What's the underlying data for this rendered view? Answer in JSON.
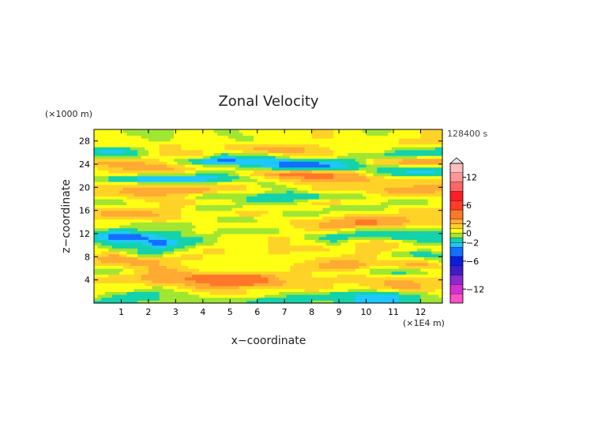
{
  "chart_data": {
    "type": "heatmap",
    "title": "Zonal Velocity",
    "xlabel": "x−coordinate",
    "ylabel": "z−coordinate",
    "x_unit": "(×1E4 m)",
    "y_unit": "(×1000 m)",
    "time_label": "128400 s",
    "xlim": [
      0,
      12.8
    ],
    "ylim": [
      0,
      30
    ],
    "x_ticks": [
      "1",
      "2",
      "3",
      "4",
      "5",
      "6",
      "7",
      "8",
      "9",
      "10",
      "11",
      "12"
    ],
    "y_ticks": [
      "4",
      "8",
      "12",
      "16",
      "20",
      "24",
      "28"
    ],
    "colorbar": {
      "range": [
        -15,
        15
      ],
      "ticks": [
        "12",
        "6",
        "2",
        "0",
        "−2",
        "−6",
        "−12"
      ],
      "levels": [
        {
          "min": -15,
          "max": -13,
          "color": "#ff50c8"
        },
        {
          "min": -13,
          "max": -11,
          "color": "#d230d2"
        },
        {
          "min": -11,
          "max": -9,
          "color": "#8c28d2"
        },
        {
          "min": -9,
          "max": -7,
          "color": "#3c1ec8"
        },
        {
          "min": -7,
          "max": -5,
          "color": "#0a1edc"
        },
        {
          "min": -5,
          "max": -3,
          "color": "#146eff"
        },
        {
          "min": -3,
          "max": -2,
          "color": "#1ec8ff"
        },
        {
          "min": -2,
          "max": -1,
          "color": "#14d2aa"
        },
        {
          "min": -1,
          "max": 0,
          "color": "#a0e632"
        },
        {
          "min": 0,
          "max": 1,
          "color": "#ffff14"
        },
        {
          "min": 1,
          "max": 2,
          "color": "#ffd228"
        },
        {
          "min": 2,
          "max": 3,
          "color": "#ffaa32"
        },
        {
          "min": 3,
          "max": 5,
          "color": "#ff7828"
        },
        {
          "min": 5,
          "max": 7,
          "color": "#ff3c28"
        },
        {
          "min": 7,
          "max": 9,
          "color": "#ff1e28"
        },
        {
          "min": 9,
          "max": 11,
          "color": "#ff6464"
        },
        {
          "min": 11,
          "max": 13,
          "color": "#ff9696"
        },
        {
          "min": 13,
          "max": 15,
          "color": "#ffbebe"
        }
      ]
    },
    "z_rows": [
      0.5,
      1.5,
      2.5,
      3.5,
      4.5,
      5.5,
      6.5,
      7.5,
      8.5,
      9.5,
      10.5,
      11.5,
      12.5,
      13.5,
      14.5,
      15.5,
      16.5,
      17.5,
      18.5,
      19.5,
      20.5,
      21.5,
      22.5,
      23.5,
      24.5,
      25.5,
      26.5,
      27.5,
      28.5,
      29.5
    ],
    "x_cols": [
      0,
      0.8,
      1.6,
      2.4,
      3.2,
      4.0,
      4.8,
      5.6,
      6.4,
      7.2,
      8.0,
      8.8,
      9.6,
      10.4,
      11.2,
      12.0,
      12.8
    ],
    "values": [
      [
        -1,
        -2,
        -1,
        -1,
        -0.5,
        -1,
        -1,
        -1,
        -2,
        -2,
        -1,
        -1,
        -2,
        -3,
        -2,
        -1,
        -1
      ],
      [
        0.5,
        -1,
        -2,
        -1,
        -1,
        0.5,
        1,
        1,
        0.5,
        -1,
        -1,
        -2,
        -2,
        -3,
        -2,
        -1,
        0.5
      ],
      [
        0.5,
        1,
        0.5,
        -1,
        1,
        2,
        2,
        1,
        1,
        1,
        2,
        1,
        0.5,
        1,
        2,
        2,
        1
      ],
      [
        1,
        1,
        1,
        2,
        2,
        3,
        4,
        4,
        3,
        2,
        1,
        1,
        1,
        2,
        3,
        2,
        1
      ],
      [
        1,
        2,
        2,
        3,
        3,
        4,
        5,
        5,
        3,
        1,
        1,
        1,
        2,
        1,
        1,
        1,
        1
      ],
      [
        -1,
        -1,
        1,
        3,
        2,
        1,
        1,
        0.5,
        0.5,
        1,
        1,
        0.5,
        0.5,
        -1,
        -2,
        -1,
        1
      ],
      [
        1,
        1,
        2,
        2,
        1,
        0.5,
        0.5,
        1,
        1,
        1,
        2,
        3,
        3,
        1,
        2,
        3,
        1
      ],
      [
        2,
        3,
        3,
        2,
        1,
        1,
        0.5,
        1,
        0.5,
        0.5,
        1,
        2,
        2,
        1,
        1,
        1,
        -1
      ],
      [
        1,
        2,
        -1,
        -1,
        1,
        1,
        1,
        0.5,
        1,
        1,
        0.5,
        0.5,
        1,
        1,
        -1,
        -2,
        -1
      ],
      [
        0.5,
        -1,
        -1,
        -2,
        -1,
        1,
        1,
        0.5,
        1,
        1,
        2,
        1,
        1,
        2,
        1,
        0.5,
        0.5
      ],
      [
        -1,
        -2,
        -2,
        -4,
        -2,
        -1,
        0.5,
        1,
        1,
        1,
        0.5,
        -1,
        1,
        2,
        1,
        -1,
        -1
      ],
      [
        -2,
        -4,
        -4,
        -2,
        -1,
        -1,
        0.5,
        0.5,
        1,
        1,
        -1,
        -2,
        -1,
        -1,
        -2,
        -2,
        -1
      ],
      [
        -1,
        -2,
        -1,
        -1,
        -1,
        1,
        -1,
        -1,
        -1,
        0.5,
        1,
        1,
        -1,
        -2,
        -1,
        -1,
        -1
      ],
      [
        0.5,
        1,
        -1,
        -1,
        -1,
        0.5,
        1,
        1,
        1,
        1,
        2,
        3,
        3,
        3,
        2,
        1,
        1
      ],
      [
        1,
        1,
        1,
        2,
        1,
        1,
        -1,
        -1,
        0.5,
        1,
        1,
        2,
        3,
        3,
        3,
        1,
        1
      ],
      [
        2,
        3,
        3,
        2,
        1,
        0.5,
        1,
        2,
        1,
        -1,
        -1,
        0.5,
        0.5,
        1,
        1,
        1,
        1
      ],
      [
        1,
        1,
        1,
        1,
        1,
        -1,
        -1,
        0.5,
        1,
        1,
        1,
        -1,
        -1,
        -1,
        1,
        1,
        1
      ],
      [
        -1,
        -1,
        0.5,
        1,
        2,
        1,
        1,
        -1,
        -1,
        -1,
        1,
        2,
        1,
        0.5,
        -1,
        -1,
        1
      ],
      [
        1,
        1,
        2,
        2,
        1,
        -1,
        -1,
        -1,
        -2,
        -2,
        -2,
        -1,
        -1,
        0.5,
        1,
        1,
        1
      ],
      [
        2,
        2,
        3,
        3,
        3,
        3,
        1,
        1,
        0.5,
        -1,
        1,
        1,
        1,
        2,
        3,
        3,
        2
      ],
      [
        1,
        1,
        1,
        1,
        1,
        0.5,
        1,
        1,
        -1,
        0.5,
        1,
        1,
        1,
        1,
        1,
        2,
        2
      ],
      [
        -1,
        -2,
        -3,
        -4,
        -4,
        -3,
        -2,
        -1,
        1,
        2,
        3,
        3,
        3,
        2,
        1,
        1,
        1
      ],
      [
        0.5,
        1,
        1,
        1,
        1,
        -1,
        -1,
        1,
        3,
        4,
        4,
        3,
        2,
        -1,
        -2,
        -3,
        -2
      ],
      [
        1,
        2,
        3,
        3,
        2,
        1,
        1,
        -1,
        -2,
        -4,
        -4,
        -3,
        -2,
        -1,
        -1,
        -1,
        -1
      ],
      [
        2,
        3,
        2,
        1,
        -1,
        -3,
        -4,
        -3,
        -3,
        -3,
        -3,
        -2,
        -1,
        2,
        3,
        4,
        3
      ],
      [
        -1,
        -1,
        -1,
        1,
        1,
        1,
        -2,
        -1,
        -1,
        1,
        1,
        1,
        -1,
        -1,
        -2,
        -1,
        -1
      ],
      [
        -2,
        -3,
        -1,
        1,
        1,
        1,
        1,
        2,
        3,
        3,
        2,
        1,
        1,
        1,
        -1,
        -1,
        -2
      ],
      [
        1,
        1,
        1,
        1,
        1,
        0.5,
        1,
        1,
        1,
        1,
        1,
        0.5,
        0.5,
        1,
        1,
        1,
        1
      ],
      [
        0.5,
        1,
        0.5,
        -1,
        0.5,
        1,
        0.5,
        -1,
        1,
        0.5,
        1,
        1,
        0.5,
        0.5,
        1,
        1,
        1
      ],
      [
        1,
        0.5,
        -1,
        -1,
        0.5,
        1,
        -1,
        0.5,
        1,
        0.5,
        1,
        1,
        0.5,
        -1,
        0.5,
        1,
        1
      ]
    ]
  }
}
